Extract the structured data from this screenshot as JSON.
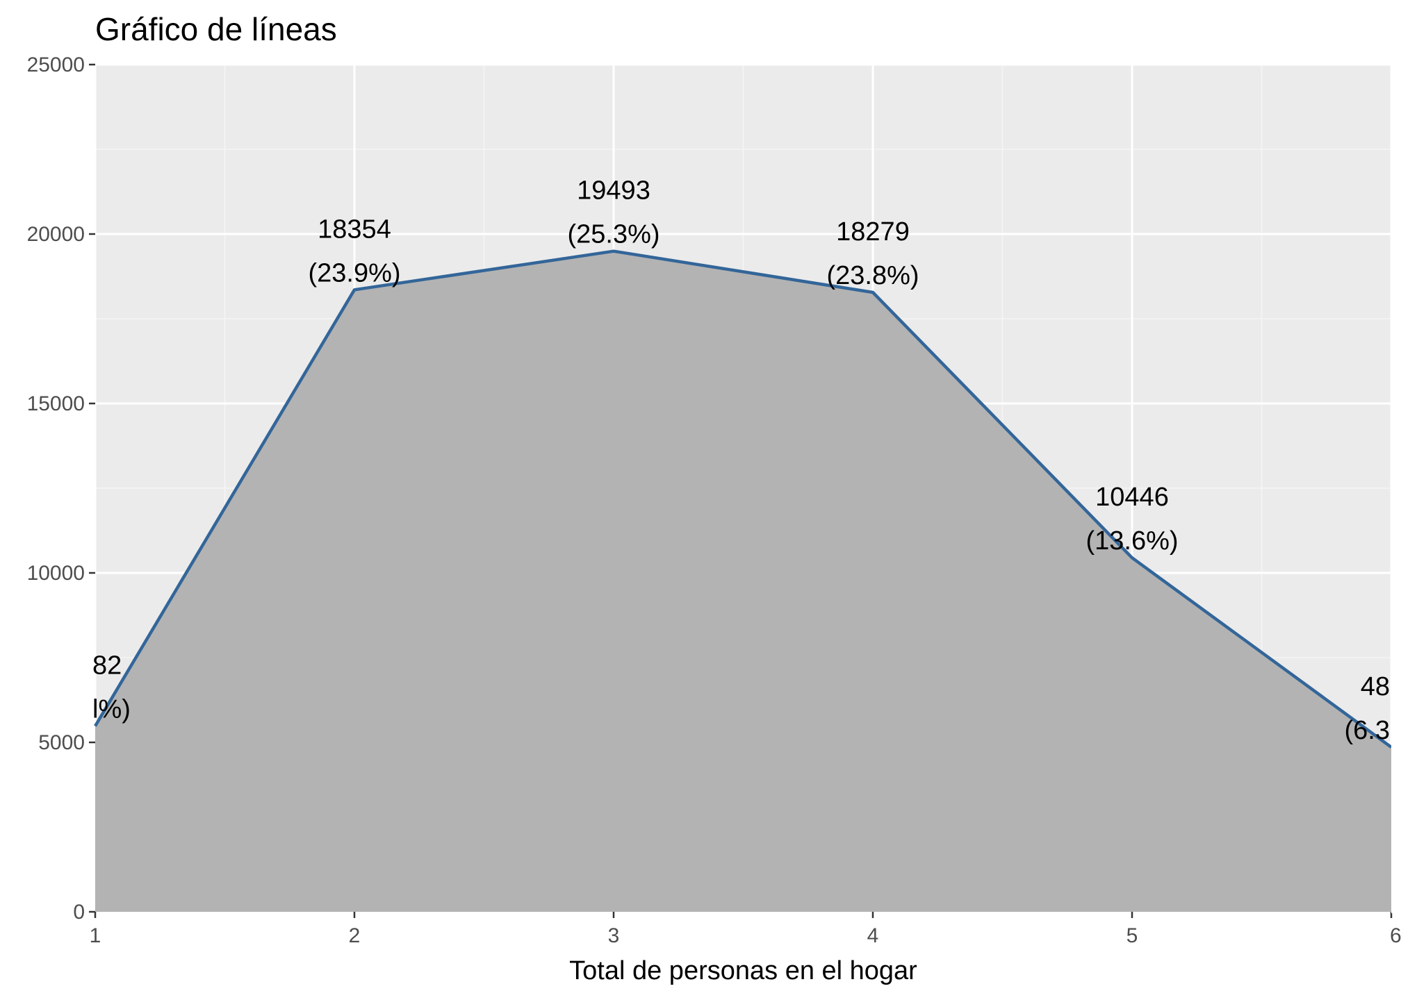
{
  "chart_data": {
    "type": "area",
    "title": "Gráfico de líneas",
    "xlabel": "Total de personas en el hogar",
    "ylabel": "",
    "x": [
      1,
      2,
      3,
      4,
      5,
      6
    ],
    "values": [
      5482,
      18354,
      19493,
      18279,
      10446,
      4859
    ],
    "labels_top": [
      "82",
      "18354",
      "19493",
      "18279",
      "10446",
      "48"
    ],
    "labels_bottom": [
      "l%)",
      "(23.9%)",
      "(25.3%)",
      "(23.8%)",
      "(13.6%)",
      "(6.3"
    ],
    "xlim": [
      1,
      6
    ],
    "ylim": [
      0,
      25000
    ],
    "x_ticks": [
      "1",
      "2",
      "3",
      "4",
      "5",
      "6"
    ],
    "y_ticks": [
      "0",
      "5000",
      "10000",
      "15000",
      "20000",
      "25000"
    ],
    "grid": true,
    "legend": "none",
    "colors": {
      "line": "#336699",
      "area": "#b3b3b3",
      "panel": "#ebebeb",
      "grid_major": "#ffffff",
      "grid_minor": "#f5f5f5"
    }
  }
}
